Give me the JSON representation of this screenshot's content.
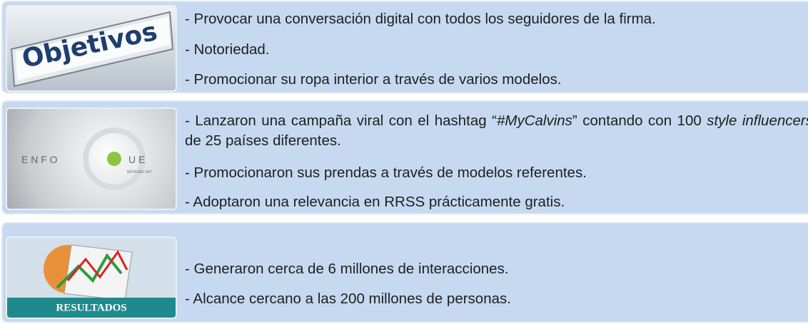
{
  "sections": [
    {
      "image_text": [
        "Objetivos"
      ],
      "items": [
        {
          "parts": [
            {
              "text": "- Provocar una conversación digital con todos los seguidores de la firma."
            }
          ]
        },
        {
          "parts": [
            {
              "text": "- Notoriedad."
            }
          ]
        },
        {
          "parts": [
            {
              "text": "- Promocionar su ropa interior a través de varios modelos."
            }
          ]
        }
      ]
    },
    {
      "image_text": [
        "E N F O",
        "U E",
        "NOTICIAS 24/7"
      ],
      "items": [
        {
          "parts": [
            {
              "text": "- Lanzaron una campaña viral con el hashtag “"
            },
            {
              "text": "#MyCalvins"
            },
            {
              "text": "” contando con 100 "
            },
            {
              "text": "style influencers"
            },
            {
              "text": " de 25 países diferentes."
            }
          ]
        },
        {
          "parts": [
            {
              "text": "- Promocionaron sus prendas a través de modelos referentes."
            }
          ]
        },
        {
          "parts": [
            {
              "text": "- Adoptaron una relevancia en RRSS prácticamente gratis."
            }
          ]
        }
      ]
    },
    {
      "image_text": [
        "RESULTADOS"
      ],
      "items": [
        {
          "parts": [
            {
              "text": "- Generaron cerca de 6 millones de interacciones."
            }
          ]
        },
        {
          "parts": [
            {
              "text": "- Alcance cercano a las 200 millones de personas."
            }
          ]
        }
      ]
    }
  ]
}
